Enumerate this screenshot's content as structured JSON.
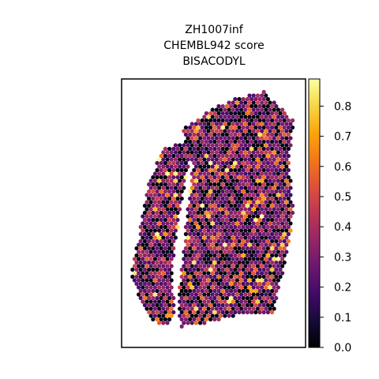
{
  "chart_data": {
    "type": "scatter",
    "title_lines": [
      "ZH1007inf",
      "CHEMBL942 score",
      "BISACODYL"
    ],
    "xlabel": "",
    "ylabel": "",
    "colormap": "inferno",
    "colorbar": {
      "min": 0.0,
      "max": 0.89,
      "ticks": [
        0.0,
        0.1,
        0.2,
        0.3,
        0.4,
        0.5,
        0.6,
        0.7,
        0.8
      ],
      "tick_labels": [
        "0.0",
        "0.1",
        "0.2",
        "0.3",
        "0.4",
        "0.5",
        "0.6",
        "0.7",
        "0.8"
      ]
    },
    "spot_value_range": [
      0.0,
      0.89
    ],
    "axes_visible": false,
    "legend": "colorbar-right"
  }
}
